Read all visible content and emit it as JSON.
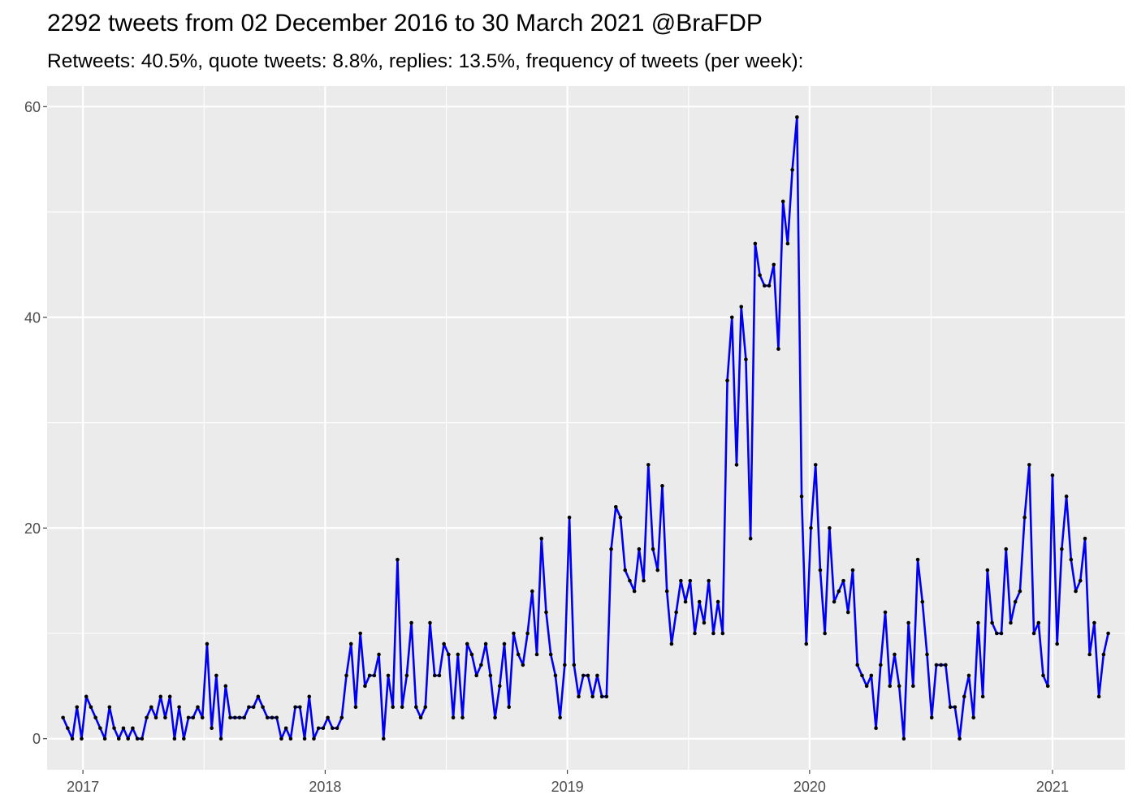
{
  "chart_data": {
    "type": "line",
    "title": "2292 tweets from 02 December 2016 to 30 March 2021 @BraFDP",
    "subtitle": "Retweets: 40.5%, quote tweets: 8.8%, replies: 13.5%, frequency of tweets (per week):",
    "xlabel": "",
    "ylabel": "",
    "x_start": "2016-12-02",
    "x_interval_days": 7,
    "xlim": [
      "2016-11-08",
      "2021-04-20"
    ],
    "ylim": [
      -2.95,
      61.95
    ],
    "x_ticks": [
      {
        "date": "2017-01-01",
        "label": "2017"
      },
      {
        "date": "2018-01-01",
        "label": "2018"
      },
      {
        "date": "2019-01-01",
        "label": "2019"
      },
      {
        "date": "2020-01-01",
        "label": "2020"
      },
      {
        "date": "2021-01-01",
        "label": "2021"
      }
    ],
    "y_ticks": [
      0,
      20,
      40,
      60
    ],
    "grid": true,
    "colors": {
      "panel": "#ebebeb",
      "grid": "#ffffff",
      "line": "#0000ee",
      "point": "#000000"
    },
    "series": [
      {
        "values": [
          2,
          1,
          0,
          3,
          0,
          4,
          3,
          2,
          1,
          0,
          3,
          1,
          0,
          1,
          0,
          1,
          0,
          0,
          2,
          3,
          2,
          4,
          2,
          4,
          0,
          3,
          0,
          2,
          2,
          3,
          2,
          9,
          1,
          6,
          0,
          5,
          2,
          2,
          2,
          2,
          3,
          3,
          4,
          3,
          2,
          2,
          2,
          0,
          1,
          0,
          3,
          3,
          0,
          4,
          0,
          1,
          1,
          2,
          1,
          1,
          2,
          6,
          9,
          3,
          10,
          5,
          6,
          6,
          8,
          0,
          6,
          3,
          17,
          3,
          6,
          11,
          3,
          2,
          3,
          11,
          6,
          6,
          9,
          8,
          2,
          8,
          2,
          9,
          8,
          6,
          7,
          9,
          6,
          2,
          5,
          9,
          3,
          10,
          8,
          7,
          10,
          14,
          8,
          19,
          12,
          8,
          6,
          2,
          7,
          21,
          7,
          4,
          6,
          6,
          4,
          6,
          4,
          4,
          18,
          22,
          21,
          16,
          15,
          14,
          18,
          15,
          26,
          18,
          16,
          24,
          14,
          9,
          12,
          15,
          13,
          15,
          10,
          13,
          11,
          15,
          10,
          13,
          10,
          34,
          40,
          26,
          41,
          36,
          19,
          47,
          44,
          43,
          43,
          45,
          37,
          51,
          47,
          54,
          59,
          23,
          9,
          20,
          26,
          16,
          10,
          20,
          13,
          14,
          15,
          12,
          16,
          7,
          6,
          5,
          6,
          1,
          7,
          12,
          5,
          8,
          5,
          0,
          11,
          5,
          17,
          13,
          8,
          2,
          7,
          7,
          7,
          3,
          3,
          0,
          4,
          6,
          2,
          11,
          4,
          16,
          11,
          10,
          10,
          18,
          11,
          13,
          14,
          21,
          26,
          10,
          11,
          6,
          5,
          25,
          9,
          18,
          23,
          17,
          14,
          15,
          19,
          8,
          11,
          4,
          8,
          10
        ]
      }
    ]
  }
}
